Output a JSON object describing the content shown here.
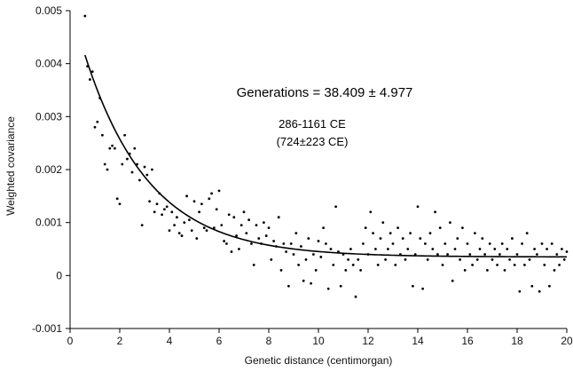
{
  "chart_data": {
    "type": "scatter",
    "xlabel": "Genetic distance (centimorgan)",
    "ylabel": "Weighted covariance",
    "xlim": [
      0,
      20
    ],
    "ylim": [
      -0.001,
      0.005
    ],
    "x_ticks": [
      "0",
      "2",
      "4",
      "6",
      "8",
      "10",
      "12",
      "14",
      "16",
      "18",
      "20"
    ],
    "y_ticks": [
      "-0.001",
      "0",
      "0.001",
      "0.002",
      "0.003",
      "0.004",
      "0.005"
    ],
    "grid": false,
    "annotations": {
      "generations": "Generations = 38.409 ± 4.977",
      "date_range": "286-1161 CE",
      "date_mean": "(724±223 CE)"
    },
    "fit_curve": {
      "amplitude": 0.0048,
      "decay_per_cM": 0.384,
      "baseline": 0.00035,
      "x_start": 0.6,
      "x_end": 20
    },
    "points": [
      [
        0.6,
        0.0049
      ],
      [
        0.7,
        0.00395
      ],
      [
        0.8,
        0.0037
      ],
      [
        0.9,
        0.00385
      ],
      [
        1.0,
        0.0028
      ],
      [
        1.1,
        0.0029
      ],
      [
        1.2,
        0.00335
      ],
      [
        1.3,
        0.00265
      ],
      [
        1.4,
        0.0021
      ],
      [
        1.5,
        0.002
      ],
      [
        1.6,
        0.0024
      ],
      [
        1.7,
        0.00245
      ],
      [
        1.8,
        0.0024
      ],
      [
        1.9,
        0.00145
      ],
      [
        2.0,
        0.00135
      ],
      [
        2.1,
        0.0021
      ],
      [
        2.2,
        0.00265
      ],
      [
        2.3,
        0.0022
      ],
      [
        2.4,
        0.0023
      ],
      [
        2.5,
        0.00195
      ],
      [
        2.6,
        0.0024
      ],
      [
        2.7,
        0.0021
      ],
      [
        2.8,
        0.0018
      ],
      [
        2.9,
        0.00095
      ],
      [
        3.0,
        0.00205
      ],
      [
        3.1,
        0.0019
      ],
      [
        3.2,
        0.0014
      ],
      [
        3.3,
        0.002
      ],
      [
        3.4,
        0.0012
      ],
      [
        3.5,
        0.00135
      ],
      [
        3.6,
        0.00155
      ],
      [
        3.7,
        0.00115
      ],
      [
        3.8,
        0.00125
      ],
      [
        3.9,
        0.0013
      ],
      [
        4.0,
        0.00085
      ],
      [
        4.1,
        0.0012
      ],
      [
        4.2,
        0.00095
      ],
      [
        4.3,
        0.0011
      ],
      [
        4.4,
        0.0008
      ],
      [
        4.5,
        0.00075
      ],
      [
        4.6,
        0.001
      ],
      [
        4.7,
        0.0015
      ],
      [
        4.8,
        0.00105
      ],
      [
        4.9,
        0.00085
      ],
      [
        5.0,
        0.0014
      ],
      [
        5.1,
        0.0007
      ],
      [
        5.2,
        0.0012
      ],
      [
        5.3,
        0.00135
      ],
      [
        5.4,
        0.0009
      ],
      [
        5.5,
        0.00085
      ],
      [
        5.6,
        0.00145
      ],
      [
        5.7,
        0.00155
      ],
      [
        5.8,
        0.0009
      ],
      [
        5.9,
        0.00125
      ],
      [
        6.0,
        0.0016
      ],
      [
        6.1,
        0.00095
      ],
      [
        6.2,
        0.00065
      ],
      [
        6.3,
        0.0006
      ],
      [
        6.4,
        0.00115
      ],
      [
        6.5,
        0.00045
      ],
      [
        6.6,
        0.0011
      ],
      [
        6.7,
        0.00075
      ],
      [
        6.8,
        0.0005
      ],
      [
        6.9,
        0.00095
      ],
      [
        7.0,
        0.0012
      ],
      [
        7.1,
        0.0008
      ],
      [
        7.2,
        0.00105
      ],
      [
        7.3,
        0.0006
      ],
      [
        7.4,
        0.0002
      ],
      [
        7.5,
        0.00095
      ],
      [
        7.6,
        0.0007
      ],
      [
        7.7,
        0.0006
      ],
      [
        7.8,
        0.001
      ],
      [
        7.9,
        0.00075
      ],
      [
        8.0,
        0.0009
      ],
      [
        8.1,
        0.0003
      ],
      [
        8.2,
        0.00065
      ],
      [
        8.3,
        0.00055
      ],
      [
        8.4,
        0.0011
      ],
      [
        8.5,
        0.0001
      ],
      [
        8.6,
        0.0006
      ],
      [
        8.7,
        0.00045
      ],
      [
        8.8,
        -0.0002
      ],
      [
        8.9,
        0.0006
      ],
      [
        9.0,
        0.0004
      ],
      [
        9.1,
        0.0008
      ],
      [
        9.2,
        0.0002
      ],
      [
        9.3,
        0.00055
      ],
      [
        9.4,
        -0.0001
      ],
      [
        9.5,
        0.0003
      ],
      [
        9.6,
        0.0007
      ],
      [
        9.7,
        -0.00015
      ],
      [
        9.8,
        0.0004
      ],
      [
        9.9,
        0.0001
      ],
      [
        10.0,
        0.00065
      ],
      [
        10.1,
        0.00035
      ],
      [
        10.2,
        0.0009
      ],
      [
        10.3,
        0.0006
      ],
      [
        10.4,
        -0.00025
      ],
      [
        10.5,
        0.0005
      ],
      [
        10.6,
        0.0002
      ],
      [
        10.7,
        0.0013
      ],
      [
        10.8,
        0.00045
      ],
      [
        10.9,
        -0.0002
      ],
      [
        11.0,
        0.0004
      ],
      [
        11.1,
        0.0001
      ],
      [
        11.2,
        0.0003
      ],
      [
        11.3,
        0.0005
      ],
      [
        11.4,
        0.0002
      ],
      [
        11.5,
        -0.0004
      ],
      [
        11.6,
        0.0003
      ],
      [
        11.7,
        0.0001
      ],
      [
        11.8,
        0.0006
      ],
      [
        11.9,
        0.0009
      ],
      [
        12.0,
        0.0004
      ],
      [
        12.1,
        0.0012
      ],
      [
        12.2,
        0.0008
      ],
      [
        12.3,
        0.0005
      ],
      [
        12.4,
        0.0002
      ],
      [
        12.5,
        0.0007
      ],
      [
        12.6,
        0.001
      ],
      [
        12.7,
        0.0003
      ],
      [
        12.8,
        0.0005
      ],
      [
        12.9,
        0.0008
      ],
      [
        13.0,
        0.0006
      ],
      [
        13.1,
        0.0002
      ],
      [
        13.2,
        0.0009
      ],
      [
        13.3,
        0.0004
      ],
      [
        13.4,
        0.0007
      ],
      [
        13.5,
        0.0003
      ],
      [
        13.6,
        0.0005
      ],
      [
        13.7,
        0.0008
      ],
      [
        13.8,
        -0.0002
      ],
      [
        13.9,
        0.0004
      ],
      [
        14.0,
        0.0013
      ],
      [
        14.1,
        0.0007
      ],
      [
        14.2,
        -0.00025
      ],
      [
        14.3,
        0.0006
      ],
      [
        14.4,
        0.0003
      ],
      [
        14.5,
        0.0008
      ],
      [
        14.6,
        0.0005
      ],
      [
        14.7,
        0.0012
      ],
      [
        14.8,
        0.0004
      ],
      [
        14.9,
        0.0009
      ],
      [
        15.0,
        0.0002
      ],
      [
        15.1,
        0.0006
      ],
      [
        15.2,
        0.0004
      ],
      [
        15.3,
        0.001
      ],
      [
        15.4,
        -0.0001
      ],
      [
        15.5,
        0.0005
      ],
      [
        15.6,
        0.0007
      ],
      [
        15.7,
        0.0003
      ],
      [
        15.8,
        0.0009
      ],
      [
        15.9,
        0.0001
      ],
      [
        16.0,
        0.0006
      ],
      [
        16.1,
        0.0004
      ],
      [
        16.2,
        0.0002
      ],
      [
        16.3,
        0.0008
      ],
      [
        16.4,
        0.0003
      ],
      [
        16.5,
        0.0005
      ],
      [
        16.6,
        0.0007
      ],
      [
        16.7,
        0.0004
      ],
      [
        16.8,
        0.0001
      ],
      [
        16.9,
        0.0006
      ],
      [
        17.0,
        0.0003
      ],
      [
        17.1,
        0.0005
      ],
      [
        17.2,
        0.0002
      ],
      [
        17.3,
        0.0004
      ],
      [
        17.4,
        0.0006
      ],
      [
        17.5,
        0.0001
      ],
      [
        17.6,
        0.0005
      ],
      [
        17.7,
        0.0003
      ],
      [
        17.8,
        0.0007
      ],
      [
        17.9,
        0.0002
      ],
      [
        18.0,
        0.0004
      ],
      [
        18.1,
        -0.0003
      ],
      [
        18.2,
        0.0006
      ],
      [
        18.3,
        0.0002
      ],
      [
        18.4,
        0.0008
      ],
      [
        18.5,
        0.0003
      ],
      [
        18.6,
        -0.0002
      ],
      [
        18.7,
        0.0005
      ],
      [
        18.8,
        0.0004
      ],
      [
        18.9,
        -0.0003
      ],
      [
        19.0,
        0.0006
      ],
      [
        19.1,
        0.0002
      ],
      [
        19.2,
        0.0005
      ],
      [
        19.3,
        -0.0002
      ],
      [
        19.4,
        0.0006
      ],
      [
        19.5,
        0.0001
      ],
      [
        19.6,
        0.0004
      ],
      [
        19.7,
        0.0002
      ],
      [
        19.8,
        0.0005
      ],
      [
        19.9,
        0.0003
      ],
      [
        20.0,
        0.00045
      ]
    ]
  }
}
